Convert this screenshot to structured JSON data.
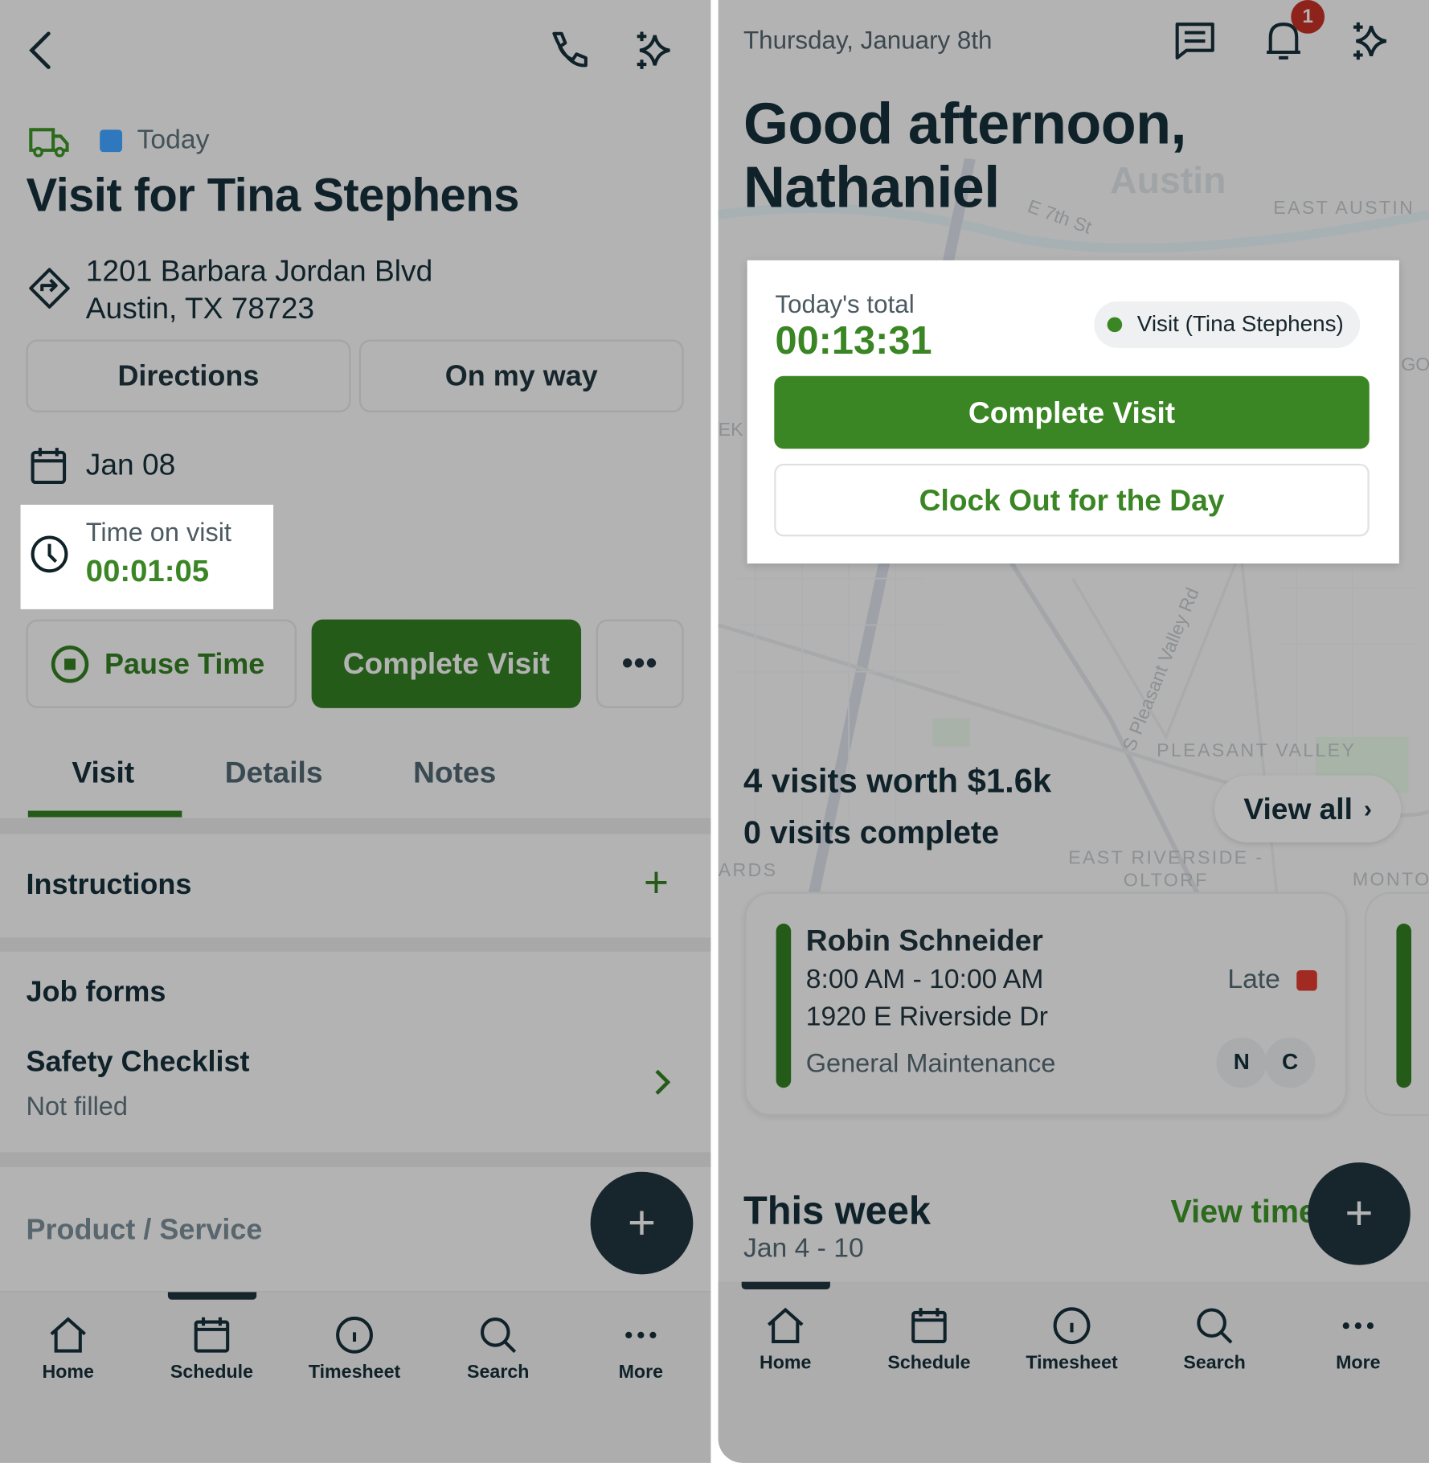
{
  "left": {
    "header": {
      "back_icon": "chevron-left-icon",
      "phone_icon": "phone-icon",
      "ai_icon": "sparkles-icon"
    },
    "status_label": "Today",
    "status_color": "#2f78bd",
    "title": "Visit for Tina Stephens",
    "address_line1": "1201 Barbara Jordan Blvd",
    "address_line2": "Austin, TX 78723",
    "directions_label": "Directions",
    "on_my_way_label": "On my way",
    "date": "Jan 08",
    "time_on_visit_label": "Time on visit",
    "time_on_visit": "00:01:05",
    "pause_label": "Pause Time",
    "complete_label": "Complete Visit",
    "tabs": [
      {
        "label": "Visit"
      },
      {
        "label": "Details"
      },
      {
        "label": "Notes"
      }
    ],
    "instructions_label": "Instructions",
    "job_forms_label": "Job forms",
    "form_name": "Safety Checklist",
    "form_status": "Not filled",
    "product_service_label": "Product / Service"
  },
  "right": {
    "date": "Thursday, January 8th",
    "notification_count": "1",
    "greeting": "Good afternoon, Nathaniel",
    "map_labels": [
      "Austin",
      "E 7th St",
      "EAST AUSTIN",
      "GO",
      "EK",
      "S Pleasant Valley Rd",
      "PLEASANT VALLEY",
      "EAST RIVERSIDE - OLTORF",
      "ARDS",
      "MONTO"
    ],
    "card": {
      "todays_total_label": "Today's total",
      "todays_total": "00:13:31",
      "chip_label": "Visit (Tina Stephens)",
      "complete_label": "Complete Visit",
      "clock_out_label": "Clock Out for the Day"
    },
    "visits_summary": "4 visits worth $1.6k",
    "visits_complete": "0 visits complete",
    "view_all_label": "View all",
    "visit": {
      "client": "Robin Schneider",
      "time": "8:00 AM - 10:00 AM",
      "address": "1920 E Riverside Dr",
      "type": "General Maintenance",
      "status": "Late",
      "status_color": "#a12b22",
      "assignees": [
        "N",
        "C"
      ]
    },
    "this_week_label": "This week",
    "week_range": "Jan 4 - 10",
    "view_timesheet_label": "View time"
  },
  "nav": [
    {
      "label": "Home",
      "icon": "home-icon"
    },
    {
      "label": "Schedule",
      "icon": "calendar-icon"
    },
    {
      "label": "Timesheet",
      "icon": "clock-icon"
    },
    {
      "label": "Search",
      "icon": "search-icon"
    },
    {
      "label": "More",
      "icon": "more-icon"
    }
  ],
  "colors": {
    "green": "#3a8524",
    "dimmed_green": "#245b18",
    "dark": "#0f2129",
    "scrim": "#b3b3b3"
  }
}
